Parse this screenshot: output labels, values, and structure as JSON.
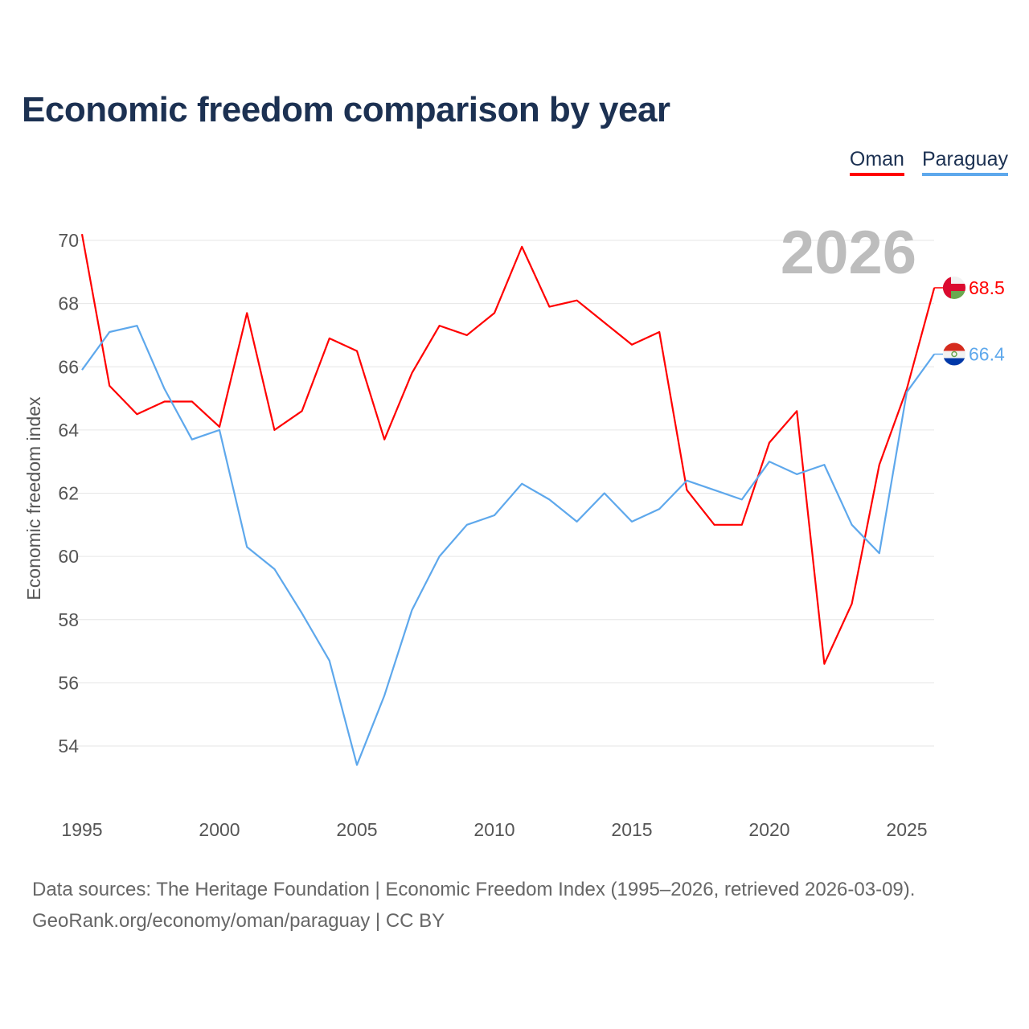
{
  "chart_data": {
    "type": "line",
    "title": "Economic freedom comparison by year",
    "ylabel": "Economic freedom index",
    "xlabel": "",
    "ylim": [
      52,
      71
    ],
    "yticks": [
      54,
      56,
      58,
      60,
      62,
      64,
      66,
      68,
      70
    ],
    "xticks": [
      1995,
      2000,
      2005,
      2010,
      2015,
      2020,
      2025
    ],
    "grid": true,
    "year_label": "2026",
    "legend_position": "top-right",
    "x": [
      1995,
      1996,
      1997,
      1998,
      1999,
      2000,
      2001,
      2002,
      2003,
      2004,
      2005,
      2006,
      2007,
      2008,
      2009,
      2010,
      2011,
      2012,
      2013,
      2014,
      2015,
      2016,
      2017,
      2018,
      2019,
      2020,
      2021,
      2022,
      2023,
      2024,
      2025,
      2026
    ],
    "series": [
      {
        "name": "Oman",
        "color": "#ff0000",
        "end_label": "68.5",
        "values": [
          70.2,
          65.4,
          64.5,
          64.9,
          64.9,
          64.1,
          67.7,
          64.0,
          64.6,
          66.9,
          66.5,
          63.7,
          65.8,
          67.3,
          67.0,
          67.7,
          69.8,
          67.9,
          68.1,
          67.4,
          66.7,
          67.1,
          62.1,
          61.0,
          61.0,
          63.6,
          64.6,
          56.6,
          58.5,
          62.9,
          65.3,
          68.5
        ]
      },
      {
        "name": "Paraguay",
        "color": "#5ea8ec",
        "end_label": "66.4",
        "values": [
          65.9,
          67.1,
          67.3,
          65.3,
          63.7,
          64.0,
          60.3,
          59.6,
          58.2,
          56.7,
          53.4,
          55.6,
          58.3,
          60.0,
          61.0,
          61.3,
          62.3,
          61.8,
          61.1,
          62.0,
          61.1,
          61.5,
          62.4,
          62.1,
          61.8,
          63.0,
          62.6,
          62.9,
          61.0,
          60.1,
          65.2,
          66.4
        ]
      }
    ]
  },
  "footer": {
    "line1": "Data sources: The Heritage Foundation | Economic Freedom Index (1995–2026, retrieved 2026-03-09).",
    "line2": "GeoRank.org/economy/oman/paraguay | CC BY"
  }
}
